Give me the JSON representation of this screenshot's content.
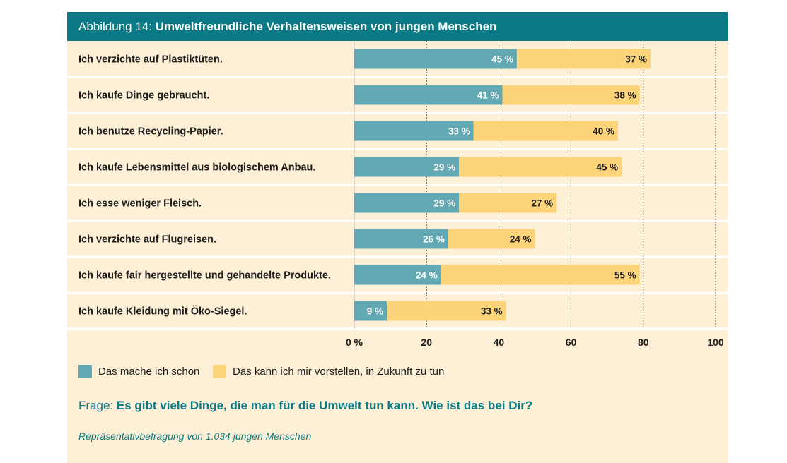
{
  "header": {
    "prefix": "Abbildung 14:",
    "title": "Umweltfreundliche Verhaltensweisen von jungen Menschen"
  },
  "colors": {
    "header_bg": "#0a7a86",
    "panel_bg": "#fdf0d6",
    "series_done": "#62a9b4",
    "series_future": "#fed47a",
    "accent_text": "#0a7a86"
  },
  "chart_data": {
    "type": "bar",
    "orientation": "horizontal",
    "stacked": true,
    "categories": [
      "Ich verzichte auf Plastiktüten.",
      "Ich kaufe Dinge gebraucht.",
      "Ich benutze Recycling-Papier.",
      "Ich kaufe Lebensmittel aus biologischem Anbau.",
      "Ich esse weniger Fleisch.",
      "Ich verzichte auf Flugreisen.",
      "Ich kaufe fair hergestellte und gehandelte Produkte.",
      "Ich kaufe Kleidung mit Öko-Siegel."
    ],
    "series": [
      {
        "name": "Das mache ich schon",
        "values": [
          45,
          41,
          33,
          29,
          29,
          26,
          24,
          9
        ],
        "labels": [
          "45 %",
          "41 %",
          "33 %",
          "29 %",
          "29 %",
          "26 %",
          "24 %",
          "9 %"
        ]
      },
      {
        "name": "Das kann ich mir vorstellen, in Zukunft zu tun",
        "values": [
          37,
          38,
          40,
          45,
          27,
          24,
          55,
          33
        ],
        "labels": [
          "37 %",
          "38 %",
          "40 %",
          "45 %",
          "27 %",
          "24 %",
          "55 %",
          "33 %"
        ]
      }
    ],
    "xlim": [
      0,
      100
    ],
    "xticks": [
      0,
      20,
      40,
      60,
      80,
      100
    ],
    "xtick_labels": [
      "0 %",
      "20",
      "40",
      "60",
      "80",
      "100"
    ],
    "grid": true,
    "legend_position": "bottom-left"
  },
  "legend": {
    "done": "Das mache ich schon",
    "future": "Das kann ich mir vorstellen, in Zukunft zu tun"
  },
  "question": {
    "prefix": "Frage:",
    "text": "Es gibt viele Dinge, die man für die Umwelt tun kann. Wie ist das bei Dir?"
  },
  "source": "Repräsentativbefragung von 1.034 jungen Menschen"
}
